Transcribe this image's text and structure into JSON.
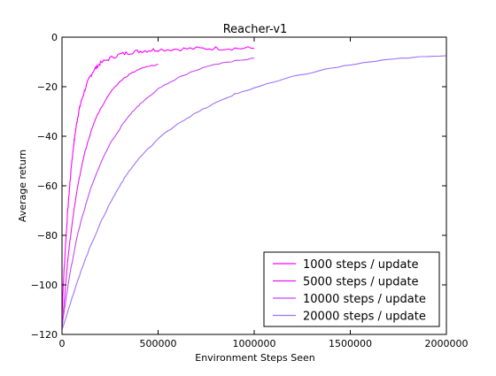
{
  "chart_data": {
    "type": "line",
    "title": "Reacher-v1",
    "xlabel": "Environment Steps Seen",
    "ylabel": "Average return",
    "xlim": [
      0,
      2000000
    ],
    "ylim": [
      -120,
      0
    ],
    "x_ticks": [
      0,
      500000,
      1000000,
      1500000,
      2000000
    ],
    "x_tick_labels": [
      "0",
      "500000",
      "1000000",
      "1500000",
      "2000000"
    ],
    "y_ticks": [
      -120,
      -100,
      -80,
      -60,
      -40,
      -20,
      0
    ],
    "y_tick_labels": [
      "−120",
      "−100",
      "−80",
      "−60",
      "−40",
      "−20",
      "0"
    ],
    "grid": false,
    "legend_position": "bottom-right",
    "series": [
      {
        "name": "1000 steps / update",
        "color": "#ff00ff",
        "x": [
          0,
          5000,
          10000,
          20000,
          30000,
          40000,
          50000,
          60000,
          70000,
          80000,
          90000,
          100000,
          120000,
          140000,
          160000,
          180000,
          200000,
          250000,
          300000,
          350000,
          400000,
          450000,
          500000,
          600000,
          700000,
          800000,
          900000,
          1000000
        ],
        "y": [
          -112,
          -103,
          -95,
          -82,
          -70,
          -60,
          -51,
          -44,
          -38,
          -33,
          -29,
          -26,
          -21,
          -17,
          -14,
          -12,
          -10.5,
          -8.5,
          -7,
          -6.2,
          -5.7,
          -5.3,
          -5,
          -4.8,
          -4.6,
          -4.5,
          -4.5,
          -4.5
        ]
      },
      {
        "name": "5000 steps / update",
        "color": "#e619f0",
        "x": [
          0,
          10000,
          20000,
          30000,
          40000,
          50000,
          60000,
          80000,
          100000,
          120000,
          140000,
          160000,
          180000,
          200000,
          250000,
          300000,
          350000,
          400000,
          450000,
          500000
        ],
        "y": [
          -118,
          -108,
          -99,
          -90,
          -83,
          -77,
          -71,
          -61,
          -53,
          -46,
          -41,
          -36,
          -32,
          -29,
          -22.5,
          -18,
          -15,
          -13,
          -11.8,
          -11
        ]
      },
      {
        "name": "10000 steps / update",
        "color": "#c448f5",
        "x": [
          0,
          20000,
          40000,
          60000,
          80000,
          100000,
          150000,
          200000,
          250000,
          300000,
          350000,
          400000,
          450000,
          500000,
          600000,
          700000,
          800000,
          900000,
          1000000
        ],
        "y": [
          -117,
          -106,
          -96,
          -88,
          -80,
          -74,
          -61,
          -51,
          -43,
          -37,
          -31.5,
          -27.5,
          -24,
          -21,
          -16.5,
          -13.3,
          -11,
          -9.6,
          -8.5
        ]
      },
      {
        "name": "20000 steps / update",
        "color": "#a070f8",
        "x": [
          0,
          50000,
          100000,
          150000,
          200000,
          250000,
          300000,
          350000,
          400000,
          500000,
          600000,
          700000,
          800000,
          900000,
          1000000,
          1200000,
          1400000,
          1600000,
          1800000,
          2000000
        ],
        "y": [
          -118,
          -106,
          -94,
          -84,
          -75,
          -67,
          -60,
          -54,
          -49,
          -41,
          -35,
          -30.5,
          -26.5,
          -23,
          -20.5,
          -16,
          -12.5,
          -10,
          -8.3,
          -7.5
        ]
      }
    ]
  }
}
